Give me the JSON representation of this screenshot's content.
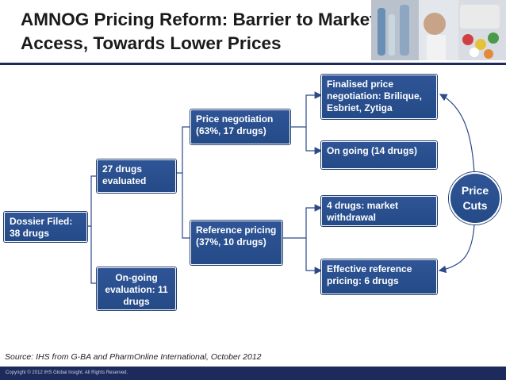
{
  "title": "AMNOG Pricing Reform: Barrier to Market Access, Towards Lower Prices",
  "boxes": {
    "dossier": "Dossier Filed: 38 drugs",
    "evaluated": "27 drugs evaluated",
    "ongoing_eval": "On-going evaluation: 11 drugs",
    "price_negotiation": "Price negotiation (63%, 17 drugs)",
    "reference_pricing": "Reference pricing (37%, 10 drugs)",
    "finalised": "Finalised price negotiation: Brilique, Esbriet, Zytiga",
    "ongoing_14": "On going (14 drugs)",
    "withdrawal": "4 drugs: market withdrawal",
    "effective_ref": "Effective reference pricing: 6 drugs",
    "price_cuts": "Price Cuts"
  },
  "source": "Source: IHS from G-BA and PharmOnline International, October 2012",
  "copyright": "Copyright © 2012 IHS Global Insight. All Rights Reserved.",
  "colors": {
    "box": "#2f5597",
    "line": "#2c4a8a",
    "footer": "#1d2b5c"
  }
}
